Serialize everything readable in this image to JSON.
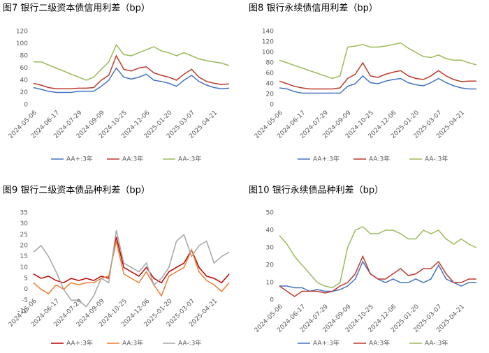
{
  "chart_data": [
    {
      "type": "line",
      "title": "图7 银行二级资本债信用利差（bp）",
      "categories": [
        "2024-05-06",
        null,
        null,
        "2024-06-17",
        null,
        null,
        "2024-07-29",
        null,
        null,
        "2024-09-09",
        null,
        null,
        "2024-10-25",
        null,
        null,
        "2024-12-06",
        null,
        null,
        "2025-01-20",
        null,
        null,
        "2025-03-07",
        null,
        null,
        "2025-04-21",
        null,
        null
      ],
      "ylim": [
        0,
        120
      ],
      "yticks": [
        0,
        20,
        40,
        60,
        80,
        100,
        120
      ],
      "grid": false,
      "series": [
        {
          "name": "AA+:3年",
          "color": "#4472c4",
          "values": [
            28,
            25,
            22,
            20,
            20,
            20,
            22,
            22,
            22,
            30,
            40,
            60,
            45,
            42,
            45,
            50,
            40,
            38,
            35,
            30,
            40,
            48,
            38,
            32,
            28,
            26,
            27
          ]
        },
        {
          "name": "AA:3年",
          "color": "#c0392b",
          "values": [
            35,
            32,
            28,
            26,
            26,
            26,
            27,
            27,
            28,
            40,
            48,
            80,
            58,
            55,
            60,
            62,
            52,
            48,
            45,
            40,
            50,
            58,
            45,
            38,
            35,
            33,
            34
          ]
        },
        {
          "name": "AA-:3年",
          "color": "#9bbb59",
          "values": [
            70,
            70,
            65,
            60,
            55,
            50,
            45,
            40,
            45,
            58,
            70,
            98,
            82,
            80,
            85,
            90,
            95,
            88,
            85,
            80,
            85,
            80,
            75,
            72,
            70,
            68,
            64
          ]
        }
      ]
    },
    {
      "type": "line",
      "title": "图8 银行永续债信用利差（bp）",
      "categories": [
        "2024-05-06",
        null,
        null,
        "2024-06-17",
        null,
        null,
        "2024-07-29",
        null,
        null,
        "2024-09-09",
        null,
        null,
        "2024-10-25",
        null,
        null,
        "2024-12-06",
        null,
        null,
        "2025-01-20",
        null,
        null,
        "2025-03-07",
        null,
        null,
        "2025-04-21",
        null,
        null
      ],
      "ylim": [
        0,
        140
      ],
      "yticks": [
        0,
        20,
        40,
        60,
        80,
        100,
        120,
        140
      ],
      "grid": false,
      "series": [
        {
          "name": "AA+:3年",
          "color": "#4472c4",
          "values": [
            32,
            30,
            25,
            22,
            22,
            22,
            22,
            22,
            22,
            35,
            40,
            55,
            42,
            40,
            45,
            48,
            50,
            42,
            38,
            36,
            42,
            50,
            42,
            36,
            32,
            30,
            30
          ]
        },
        {
          "name": "AA:3年",
          "color": "#c0392b",
          "values": [
            45,
            40,
            35,
            32,
            30,
            30,
            30,
            30,
            32,
            50,
            58,
            80,
            55,
            52,
            58,
            62,
            65,
            55,
            50,
            48,
            55,
            65,
            55,
            48,
            44,
            45,
            45
          ]
        },
        {
          "name": "AA-:3年",
          "color": "#9bbb59",
          "values": [
            85,
            80,
            75,
            70,
            65,
            60,
            55,
            50,
            55,
            110,
            112,
            115,
            110,
            110,
            112,
            115,
            118,
            108,
            100,
            92,
            90,
            95,
            88,
            85,
            85,
            80,
            76
          ]
        }
      ]
    },
    {
      "type": "line",
      "title": "图9 银行二级资本债品种利差（bp）",
      "categories": [
        "2024-05-06",
        null,
        null,
        "2024-06-17",
        null,
        null,
        "2024-07-29",
        null,
        null,
        "2024-09-09",
        null,
        null,
        "2024-10-25",
        null,
        null,
        "2024-12-06",
        null,
        null,
        "2025-01-20",
        null,
        null,
        "2025-03-07",
        null,
        null,
        "2025-04-21",
        null,
        null
      ],
      "ylim": [
        -10,
        35
      ],
      "yticks": [
        -10,
        -5,
        0,
        5,
        10,
        15,
        20,
        25,
        30,
        35
      ],
      "grid": false,
      "series": [
        {
          "name": "AA+:3年",
          "color": "#c00000",
          "values": [
            7,
            5,
            6,
            4,
            3,
            5,
            4,
            5,
            4,
            6,
            5,
            24,
            10,
            8,
            6,
            10,
            5,
            3,
            8,
            10,
            12,
            18,
            10,
            6,
            5,
            3,
            7
          ]
        },
        {
          "name": "AA:3年",
          "color": "#ed7d31",
          "values": [
            3,
            0,
            -2,
            2,
            0,
            3,
            2,
            3,
            3,
            5,
            6,
            22,
            7,
            5,
            3,
            8,
            2,
            -3,
            6,
            8,
            10,
            18,
            8,
            4,
            2,
            -1,
            3
          ]
        },
        {
          "name": "AA-:3年",
          "color": "#a5a5a5",
          "values": [
            17,
            20,
            15,
            8,
            0,
            -5,
            -5,
            -8,
            -3,
            5,
            3,
            27,
            12,
            10,
            8,
            12,
            2,
            5,
            10,
            22,
            25,
            15,
            20,
            22,
            12,
            15,
            17
          ]
        }
      ]
    },
    {
      "type": "line",
      "title": "图10 银行永续债品种利差（bp）",
      "categories": [
        "2024-05-06",
        null,
        null,
        "2024-06-17",
        null,
        null,
        "2024-07-29",
        null,
        null,
        "2024-09-09",
        null,
        null,
        "2024-10-25",
        null,
        null,
        "2024-12-06",
        null,
        null,
        "2025-01-20",
        null,
        null,
        "2025-03-07",
        null,
        null,
        "2025-04-21",
        null,
        null
      ],
      "ylim": [
        0,
        50
      ],
      "yticks": [
        0,
        10,
        20,
        30,
        40,
        50
      ],
      "grid": false,
      "series": [
        {
          "name": "AA+:3年",
          "color": "#4472c4",
          "values": [
            8,
            8,
            7,
            7,
            5,
            6,
            5,
            5,
            6,
            8,
            12,
            22,
            15,
            12,
            10,
            12,
            10,
            10,
            12,
            10,
            12,
            20,
            12,
            10,
            8,
            10,
            10
          ]
        },
        {
          "name": "AA:3年",
          "color": "#c0392b",
          "values": [
            8,
            5,
            2,
            5,
            5,
            5,
            4,
            5,
            8,
            10,
            15,
            25,
            15,
            12,
            12,
            15,
            18,
            14,
            15,
            18,
            18,
            22,
            15,
            10,
            10,
            12,
            12
          ]
        },
        {
          "name": "AA-:3年",
          "color": "#9bbb59",
          "values": [
            37,
            32,
            25,
            20,
            15,
            10,
            8,
            7,
            10,
            30,
            40,
            42,
            38,
            38,
            40,
            40,
            38,
            35,
            35,
            40,
            38,
            40,
            35,
            32,
            35,
            32,
            30
          ]
        }
      ]
    }
  ]
}
